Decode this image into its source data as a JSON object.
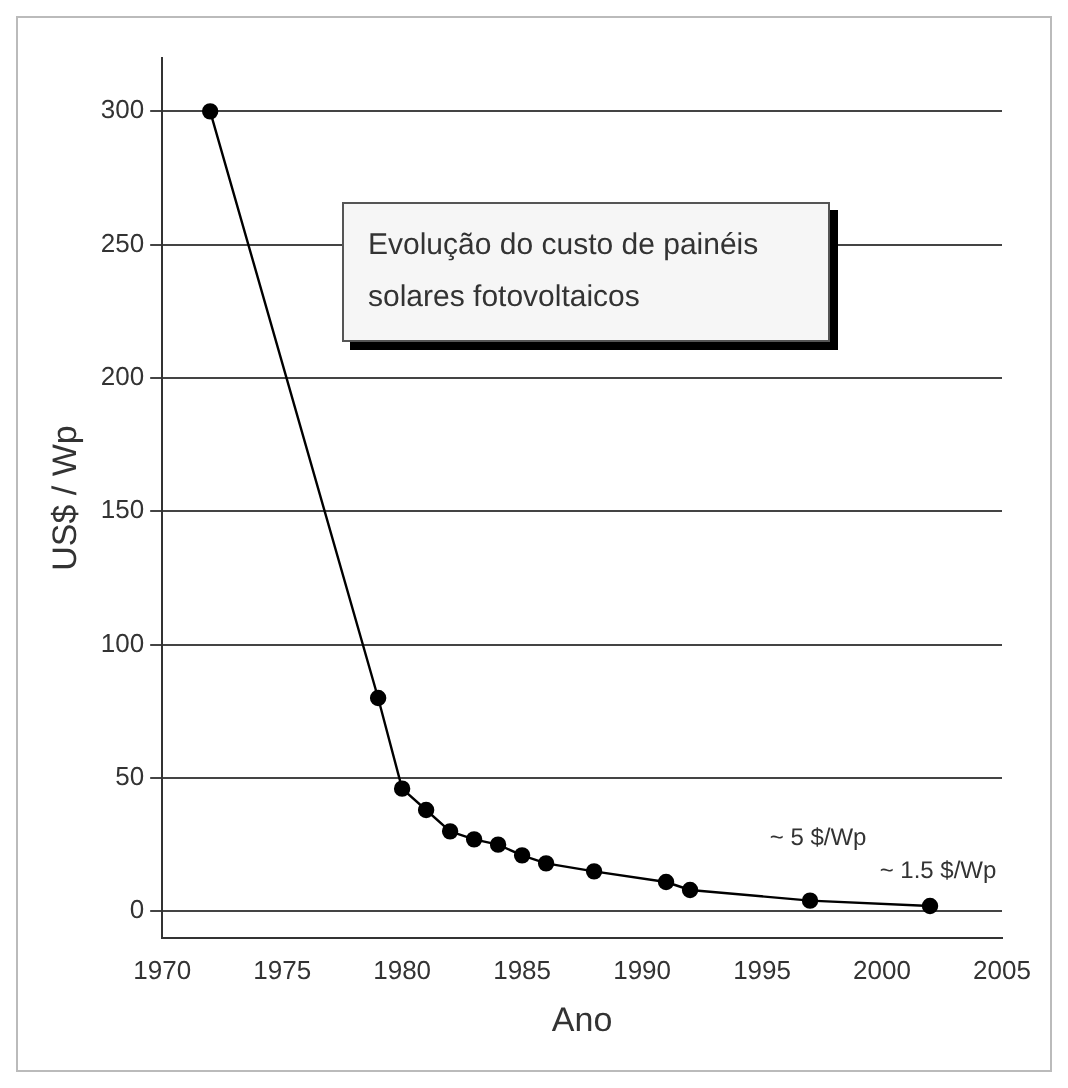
{
  "chart_data": {
    "type": "line",
    "title": "Evolução do custo de painéis solares fotovoltaicos",
    "xlabel": "Ano",
    "ylabel": "US$ / Wp",
    "x": [
      1972,
      1979,
      1980,
      1981,
      1982,
      1983,
      1984,
      1985,
      1986,
      1988,
      1991,
      1992,
      1997,
      2002
    ],
    "series": [
      {
        "color": "#000000",
        "values": [
          300,
          80,
          46,
          38,
          30,
          27,
          25,
          21,
          18,
          15,
          11,
          8,
          4,
          2
        ]
      }
    ],
    "xlim": [
      1970,
      2005
    ],
    "xticks": [
      1970,
      1975,
      1980,
      1985,
      1990,
      1995,
      2000,
      2005
    ],
    "ylim": [
      -10,
      320
    ],
    "yticks": [
      0,
      50,
      100,
      150,
      200,
      250,
      300
    ],
    "grid": "y",
    "legend": false,
    "marker": "circle",
    "line_style": "solid",
    "annotations": [
      {
        "text": "~ 5 $/Wp",
        "x": 1997,
        "y": 4
      },
      {
        "text": "~ 1.5 $/Wp",
        "x": 2002,
        "y": 2
      }
    ]
  }
}
